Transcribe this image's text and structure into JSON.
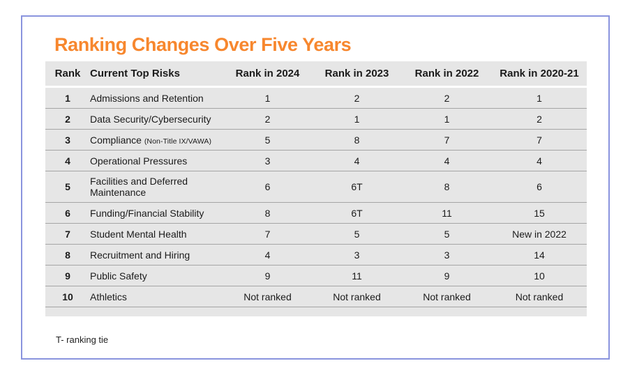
{
  "colors": {
    "accent_orange": "#F7872E",
    "card_border": "#8A94DE",
    "table_bg": "#E6E6E6",
    "row_separator": "#A5A5A5",
    "text": "#1B1B1B"
  },
  "footnote": "T- ranking tie",
  "chart_data": {
    "type": "table",
    "title": "Ranking Changes Over Five Years",
    "columns": [
      "Rank",
      "Current Top Risks",
      "Rank in 2024",
      "Rank in 2023",
      "Rank in 2022",
      "Rank in 2020-21"
    ],
    "rows": [
      {
        "rank": "1",
        "risk": "Admissions and Retention",
        "note": "",
        "y2024": "1",
        "y2023": "2",
        "y2022": "2",
        "y2020_21": "1"
      },
      {
        "rank": "2",
        "risk": "Data Security/Cybersecurity",
        "note": "",
        "y2024": "2",
        "y2023": "1",
        "y2022": "1",
        "y2020_21": "2"
      },
      {
        "rank": "3",
        "risk": "Compliance",
        "note": "(Non-Title IX/VAWA)",
        "y2024": "5",
        "y2023": "8",
        "y2022": "7",
        "y2020_21": "7"
      },
      {
        "rank": "4",
        "risk": "Operational Pressures",
        "note": "",
        "y2024": "3",
        "y2023": "4",
        "y2022": "4",
        "y2020_21": "4"
      },
      {
        "rank": "5",
        "risk": "Facilities and Deferred Maintenance",
        "note": "",
        "y2024": "6",
        "y2023": "6T",
        "y2022": "8",
        "y2020_21": "6"
      },
      {
        "rank": "6",
        "risk": "Funding/Financial Stability",
        "note": "",
        "y2024": "8",
        "y2023": "6T",
        "y2022": "11",
        "y2020_21": "15"
      },
      {
        "rank": "7",
        "risk": "Student Mental Health",
        "note": "",
        "y2024": "7",
        "y2023": "5",
        "y2022": "5",
        "y2020_21": "New in 2022"
      },
      {
        "rank": "8",
        "risk": "Recruitment and Hiring",
        "note": "",
        "y2024": "4",
        "y2023": "3",
        "y2022": "3",
        "y2020_21": "14"
      },
      {
        "rank": "9",
        "risk": "Public Safety",
        "note": "",
        "y2024": "9",
        "y2023": "11",
        "y2022": "9",
        "y2020_21": "10"
      },
      {
        "rank": "10",
        "risk": "Athletics",
        "note": "",
        "y2024": "Not ranked",
        "y2023": "Not ranked",
        "y2022": "Not ranked",
        "y2020_21": "Not ranked"
      }
    ]
  }
}
